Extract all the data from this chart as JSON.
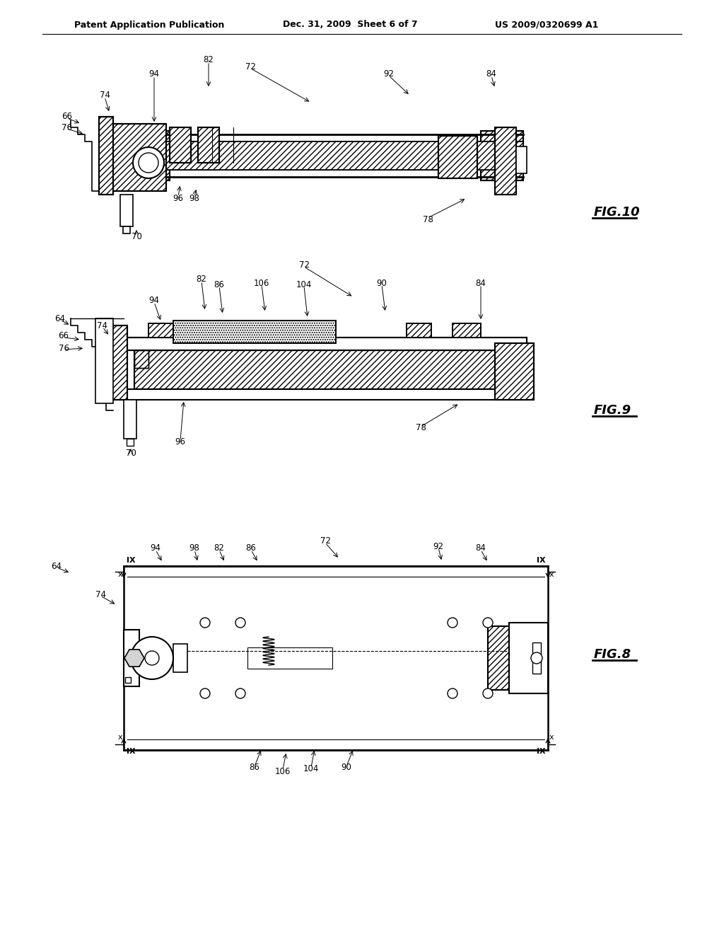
{
  "bg_color": "#ffffff",
  "line_color": "#000000",
  "hatch_color": "#000000",
  "header_left": "Patent Application Publication",
  "header_mid": "Dec. 31, 2009  Sheet 6 of 7",
  "header_right": "US 2009/0320699 A1",
  "fig8_label": "FIG.8",
  "fig9_label": "FIG.9",
  "fig10_label": "FIG.10"
}
